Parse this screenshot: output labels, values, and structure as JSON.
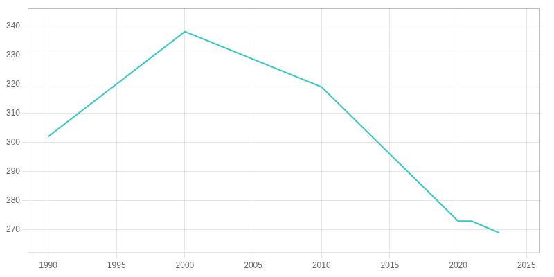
{
  "chart_data": {
    "type": "line",
    "x": [
      1990,
      2000,
      2010,
      2020,
      2021,
      2022,
      2023
    ],
    "values": [
      302,
      338,
      319,
      273,
      273,
      271,
      269
    ],
    "color": "#2ec8c8",
    "xlim": [
      1988.5,
      2026
    ],
    "ylim": [
      262,
      346
    ],
    "xticks": [
      1990,
      1995,
      2000,
      2005,
      2010,
      2015,
      2020,
      2025
    ],
    "yticks": [
      270,
      280,
      290,
      300,
      310,
      320,
      330,
      340
    ],
    "grid": true
  }
}
